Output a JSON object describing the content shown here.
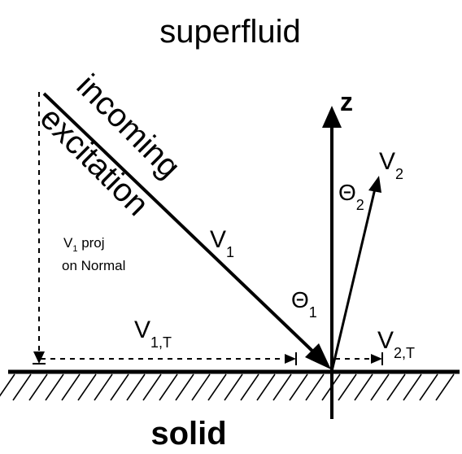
{
  "region_top": "superfluid",
  "region_bottom": "solid",
  "incoming_word1": "incoming",
  "incoming_word2": "excitation",
  "axis_label": "z",
  "v1": {
    "main": "V",
    "sub": "1"
  },
  "v2": {
    "main": "V",
    "sub": "2"
  },
  "v1t": {
    "main": "V",
    "sub": "1,T"
  },
  "v2t": {
    "main": "V",
    "sub": "2,T"
  },
  "theta1": {
    "main": "Θ",
    "sub": "1"
  },
  "theta2": {
    "main": "Θ",
    "sub": "2"
  },
  "proj": {
    "main": "V",
    "sub": "1",
    "rest": " proj",
    "line2": "on Normal"
  },
  "colors": {
    "ink": "#000000",
    "background": "#ffffff"
  }
}
